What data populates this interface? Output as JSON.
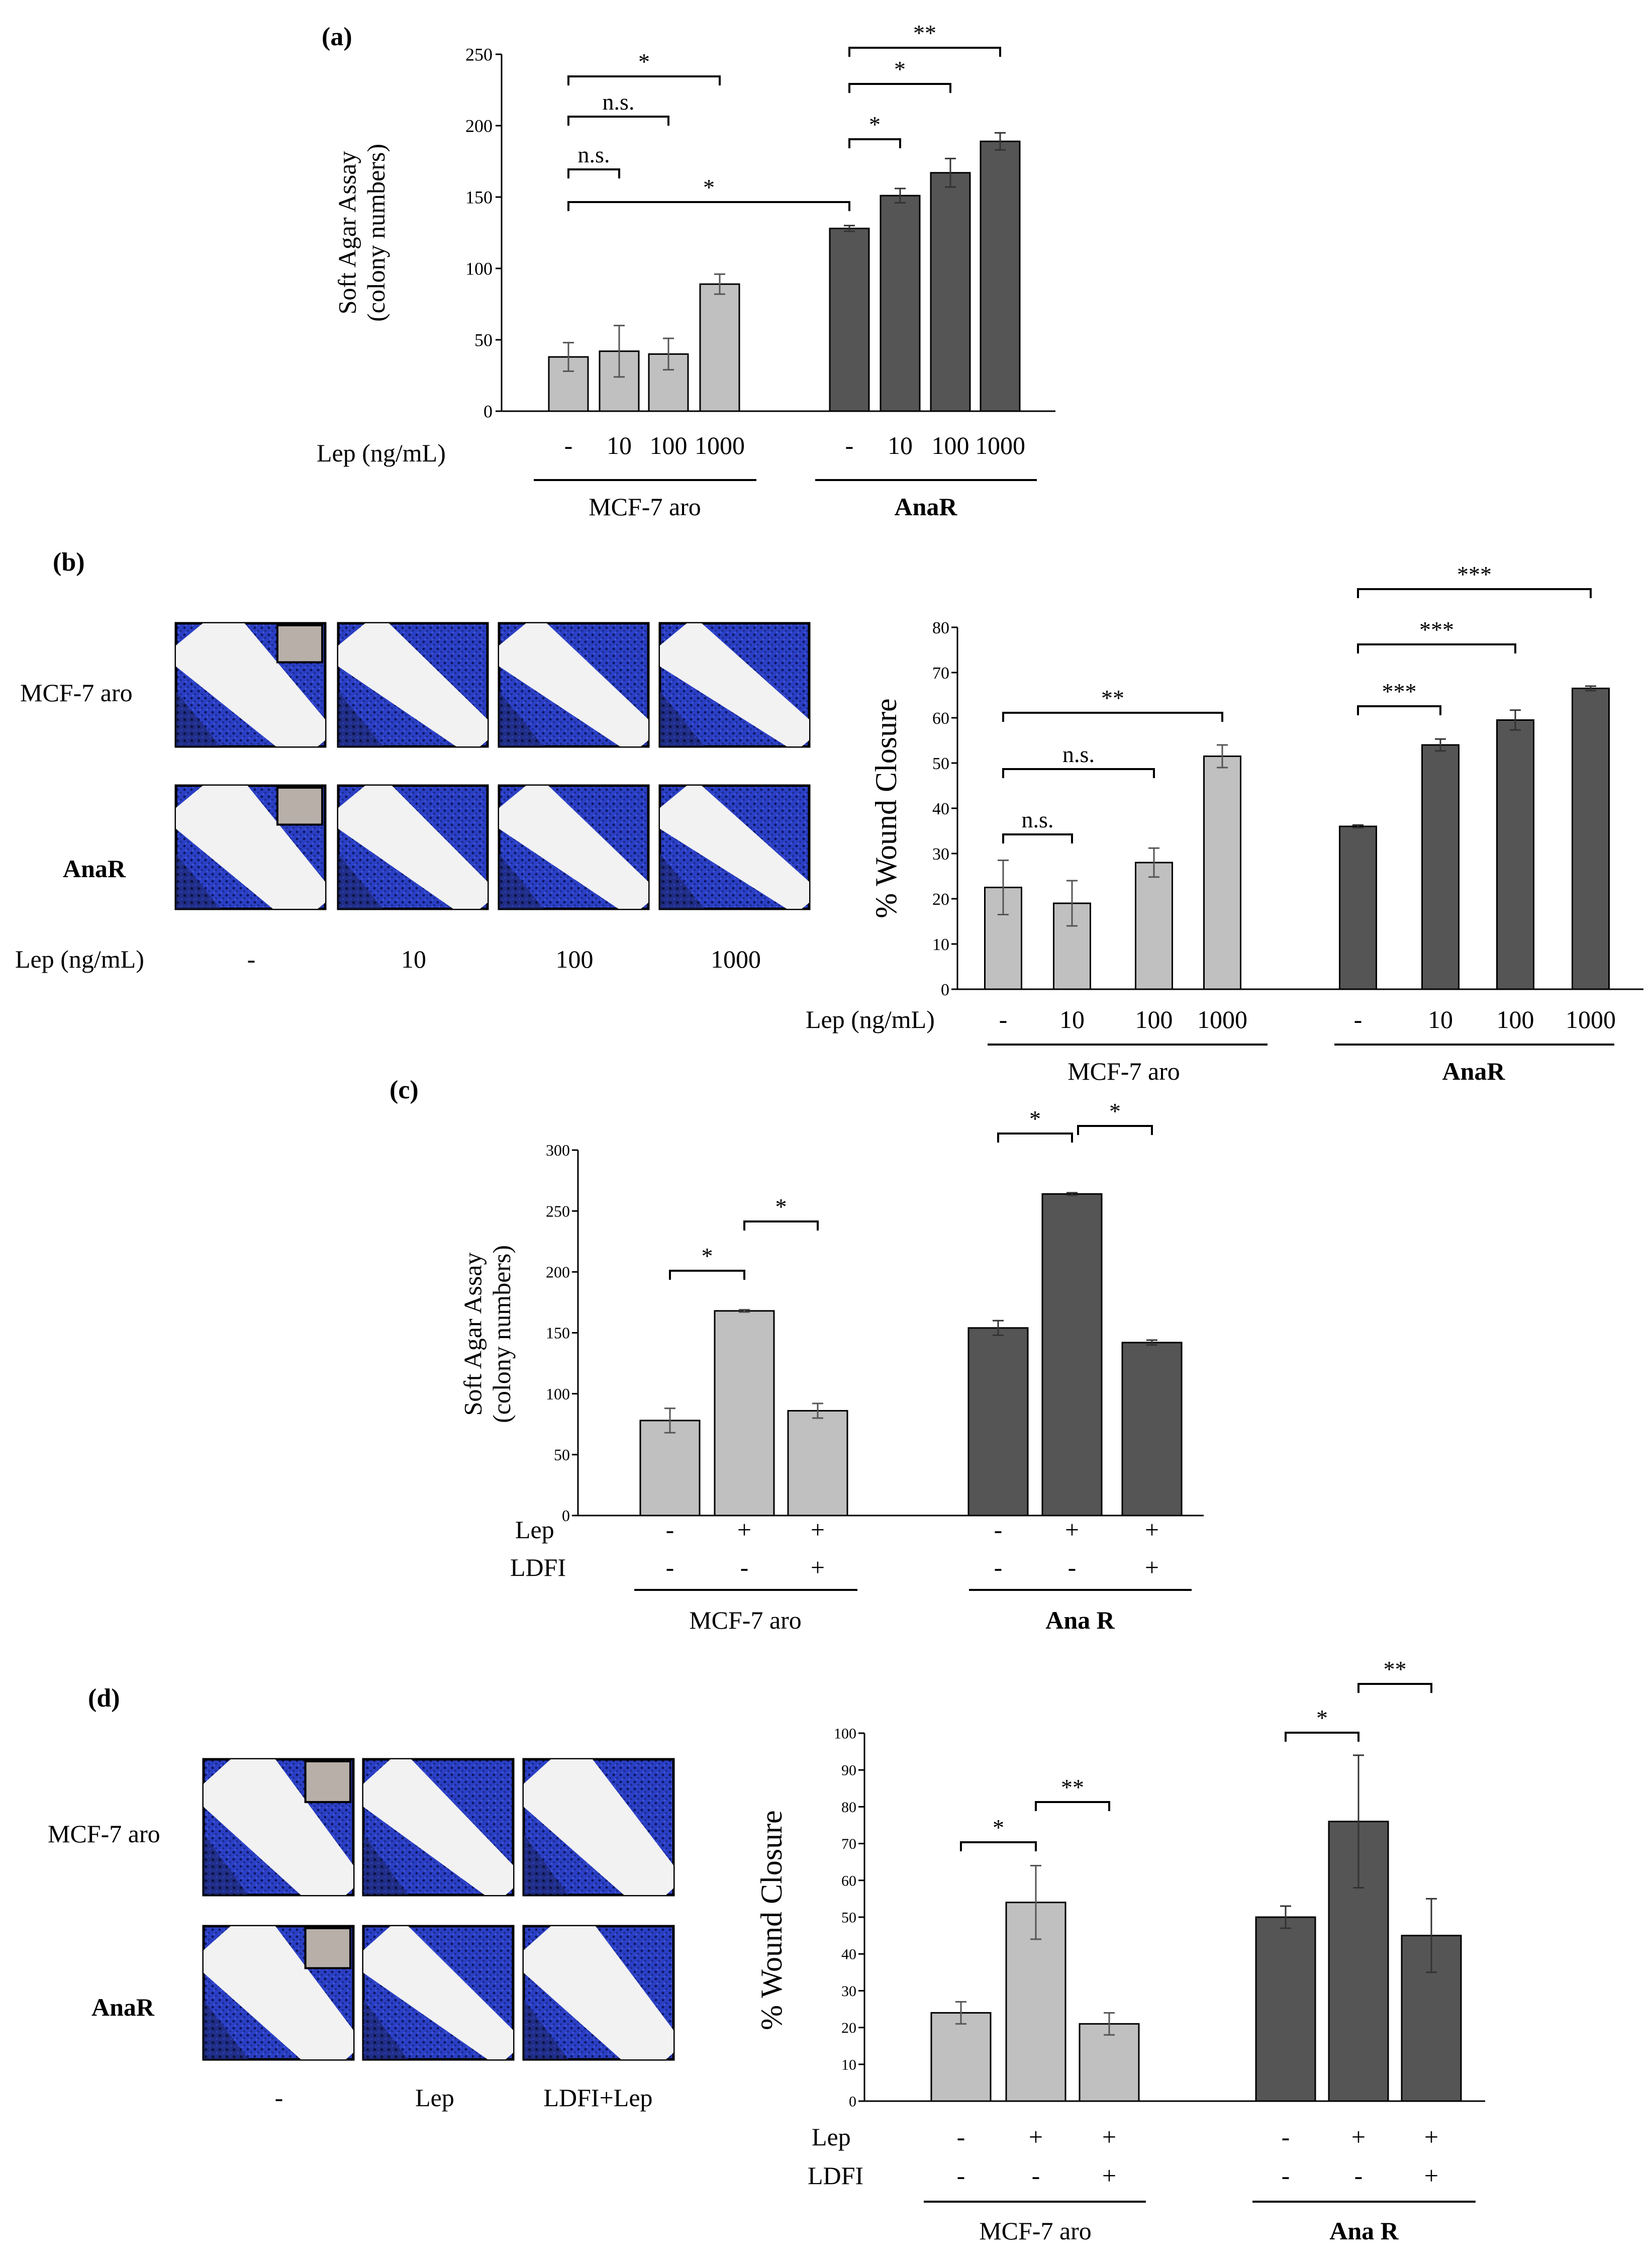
{
  "colors": {
    "light_bar": "#c0c0c0",
    "dark_bar": "#555555",
    "axis": "#000000",
    "scratch_stain": "#2a3fc4"
  },
  "panel_a": {
    "label": "(a)",
    "row_label": "Lep (ng/mL)",
    "group_labels": [
      "MCF-7 aro",
      "AnaR"
    ],
    "sig": [
      "*",
      "n.s.",
      "n.s.",
      "*",
      "**",
      "*",
      "*"
    ]
  },
  "panel_b": {
    "label": "(b)",
    "row_labels": [
      "MCF-7 aro",
      "AnaR"
    ],
    "image_lep_label": "Lep (ng/mL)",
    "image_columns": [
      "-",
      "10",
      "100",
      "1000"
    ],
    "row_label": "Lep (ng/mL)",
    "group_labels": [
      "MCF-7 aro",
      "AnaR"
    ],
    "sig": [
      "**",
      "n.s.",
      "n.s.",
      "***",
      "***",
      "***"
    ]
  },
  "panel_c": {
    "label": "(c)",
    "row_labels": [
      "Lep",
      "LDFI"
    ],
    "lep_values": [
      "-",
      "+",
      "+",
      "-",
      "+",
      "+"
    ],
    "ldfi_values": [
      "-",
      "-",
      "+",
      "-",
      "-",
      "+"
    ],
    "group_labels": [
      "MCF-7 aro",
      "Ana R"
    ],
    "sig": [
      "*",
      "*",
      "*",
      "*"
    ]
  },
  "panel_d": {
    "label": "(d)",
    "row_labels": [
      "MCF-7 aro",
      "AnaR"
    ],
    "image_columns": [
      "-",
      "Lep",
      "LDFI+Lep"
    ],
    "lep_label": "Lep",
    "ldfi_label": "LDFI",
    "lep_values": [
      "-",
      "+",
      "+",
      "-",
      "+",
      "+"
    ],
    "ldfi_values": [
      "-",
      "-",
      "+",
      "-",
      "-",
      "+"
    ],
    "group_labels": [
      "MCF-7 aro",
      "Ana R"
    ],
    "sig": [
      "*",
      "**",
      "*",
      "**"
    ]
  },
  "chart_data": [
    {
      "id": "a",
      "type": "bar",
      "ylabel": "Soft Agar Assay (colony numbers)",
      "ylabel_lines": [
        "Soft Agar Assay",
        "(colony numbers)"
      ],
      "xlabel": "Lep (ng/mL)",
      "ylim": [
        0,
        250
      ],
      "yticks": [
        0,
        50,
        100,
        150,
        200,
        250
      ],
      "categories": [
        "-",
        "10",
        "100",
        "1000",
        "-",
        "10",
        "100",
        "1000"
      ],
      "groups": [
        "MCF-7 aro",
        "AnaR"
      ],
      "values": [
        38,
        42,
        40,
        89,
        128,
        151,
        167,
        189
      ],
      "errors": [
        10,
        18,
        11,
        7,
        2,
        5,
        10,
        6
      ],
      "bar_group": [
        0,
        0,
        0,
        0,
        1,
        1,
        1,
        1
      ]
    },
    {
      "id": "b",
      "type": "bar",
      "ylabel": "% Wound Closure",
      "xlabel": "Lep (ng/mL)",
      "ylim": [
        0,
        80
      ],
      "yticks": [
        0,
        10,
        20,
        30,
        40,
        50,
        60,
        70,
        80
      ],
      "categories": [
        "-",
        "10",
        "100",
        "1000",
        "-",
        "10",
        "100",
        "1000"
      ],
      "groups": [
        "MCF-7 aro",
        "AnaR"
      ],
      "values": [
        22.5,
        19,
        28,
        51.5,
        36,
        54,
        59.5,
        66.5
      ],
      "errors": [
        6,
        5,
        3.2,
        2.5,
        0.3,
        1.3,
        2.2,
        0.5
      ],
      "bar_group": [
        0,
        0,
        0,
        0,
        1,
        1,
        1,
        1
      ]
    },
    {
      "id": "c",
      "type": "bar",
      "ylabel": "Soft Agar Assay (colony numbers)",
      "ylabel_lines": [
        "Soft Agar Assay",
        "(colony numbers)"
      ],
      "ylim": [
        0,
        300
      ],
      "yticks": [
        0,
        50,
        100,
        150,
        200,
        250,
        300
      ],
      "categories": [
        "Lep -/LDFI -",
        "Lep +/LDFI -",
        "Lep +/LDFI +",
        "Lep -/LDFI -",
        "Lep +/LDFI -",
        "Lep +/LDFI +"
      ],
      "groups": [
        "MCF-7 aro",
        "Ana R"
      ],
      "values": [
        78,
        168,
        86,
        154,
        264,
        142
      ],
      "errors": [
        10,
        1,
        6,
        6,
        1,
        2
      ],
      "bar_group": [
        0,
        0,
        0,
        1,
        1,
        1
      ]
    },
    {
      "id": "d",
      "type": "bar",
      "ylabel": "% Wound Closure",
      "ylim": [
        0,
        100
      ],
      "yticks": [
        0,
        10,
        20,
        30,
        40,
        50,
        60,
        70,
        80,
        90,
        100
      ],
      "categories": [
        "Lep -/LDFI -",
        "Lep +/LDFI -",
        "Lep +/LDFI +",
        "Lep -/LDFI -",
        "Lep +/LDFI -",
        "Lep +/LDFI +"
      ],
      "groups": [
        "MCF-7 aro",
        "Ana R"
      ],
      "values": [
        24,
        54,
        21,
        50,
        76,
        45
      ],
      "errors": [
        3,
        10,
        3,
        3,
        18,
        10
      ],
      "bar_group": [
        0,
        0,
        0,
        1,
        1,
        1
      ]
    }
  ]
}
